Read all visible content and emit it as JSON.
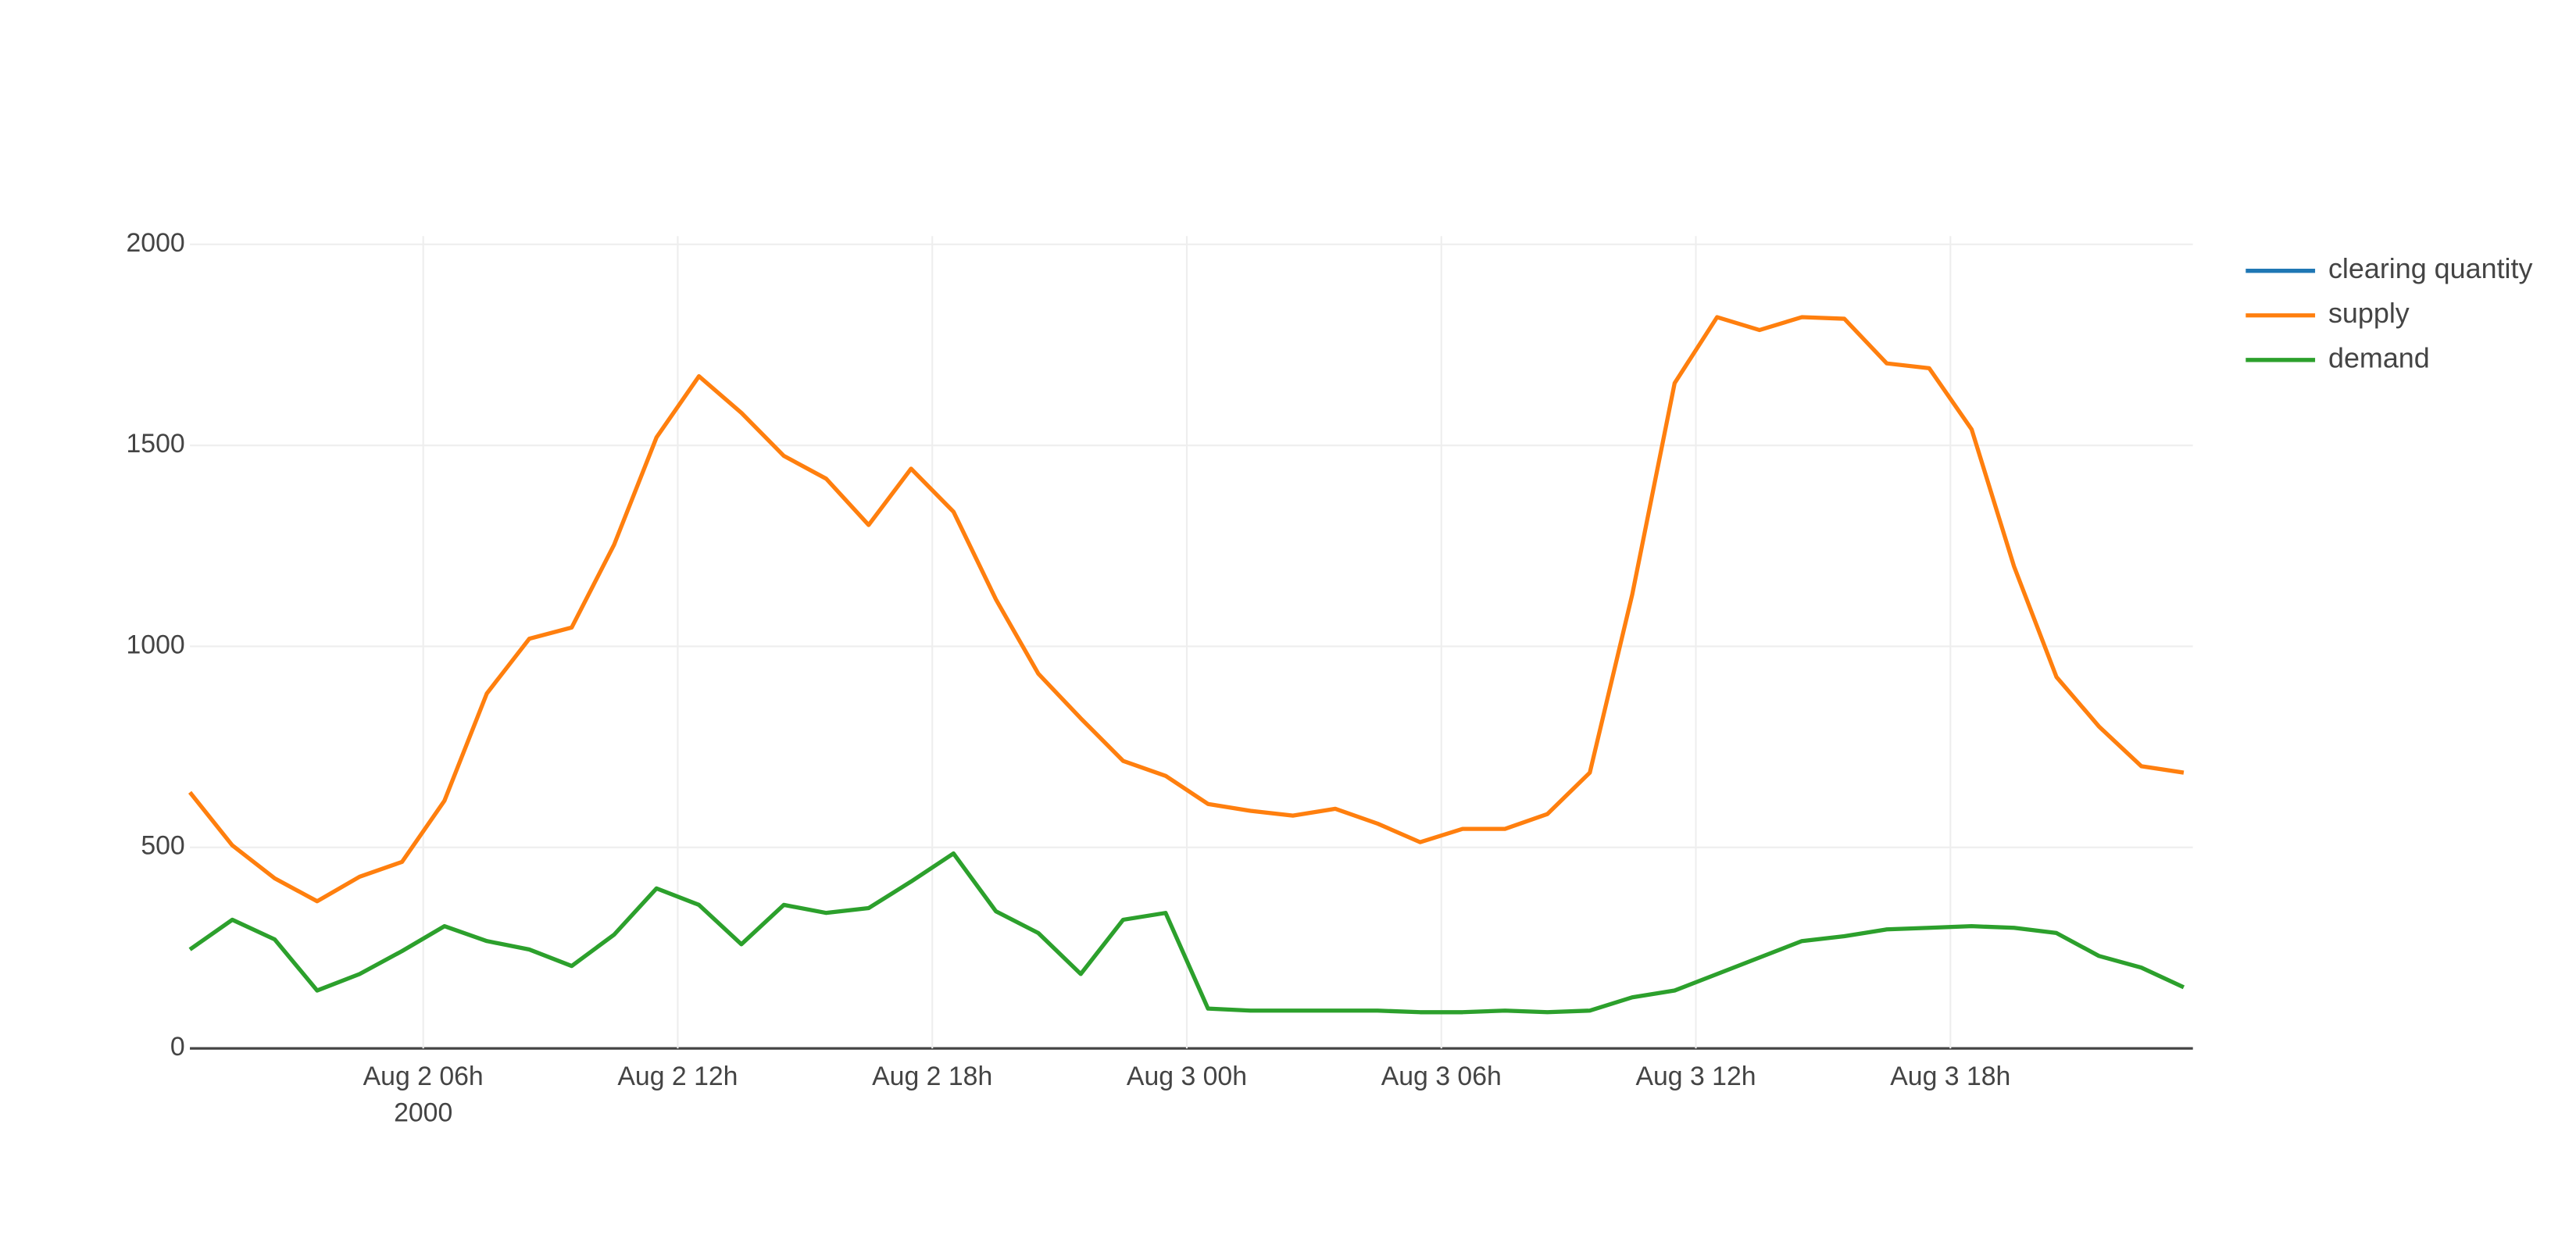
{
  "chart_data": {
    "type": "line",
    "x": [
      "2000-08-02 00:30",
      "2000-08-02 01:30",
      "2000-08-02 02:30",
      "2000-08-02 03:30",
      "2000-08-02 04:30",
      "2000-08-02 05:30",
      "2000-08-02 06:30",
      "2000-08-02 07:30",
      "2000-08-02 08:30",
      "2000-08-02 09:30",
      "2000-08-02 10:30",
      "2000-08-02 11:30",
      "2000-08-02 12:30",
      "2000-08-02 13:30",
      "2000-08-02 14:30",
      "2000-08-02 15:30",
      "2000-08-02 16:30",
      "2000-08-02 17:30",
      "2000-08-02 18:30",
      "2000-08-02 19:30",
      "2000-08-02 20:30",
      "2000-08-02 21:30",
      "2000-08-02 22:30",
      "2000-08-02 23:30",
      "2000-08-03 00:30",
      "2000-08-03 01:30",
      "2000-08-03 02:30",
      "2000-08-03 03:30",
      "2000-08-03 04:30",
      "2000-08-03 05:30",
      "2000-08-03 06:30",
      "2000-08-03 07:30",
      "2000-08-03 08:30",
      "2000-08-03 09:30",
      "2000-08-03 10:30",
      "2000-08-03 11:30",
      "2000-08-03 12:30",
      "2000-08-03 13:30",
      "2000-08-03 14:30",
      "2000-08-03 15:30",
      "2000-08-03 16:30",
      "2000-08-03 17:30",
      "2000-08-03 18:30",
      "2000-08-03 19:30",
      "2000-08-03 20:30",
      "2000-08-03 21:30",
      "2000-08-03 22:30",
      "2000-08-03 23:30"
    ],
    "series": [
      {
        "name": "clearing quantity",
        "color": "#1f77b4",
        "values": [
          null,
          null,
          null,
          null,
          null,
          null,
          null,
          null,
          null,
          null,
          null,
          null,
          null,
          null,
          null,
          null,
          null,
          null,
          null,
          null,
          null,
          null,
          null,
          null,
          null,
          null,
          null,
          null,
          null,
          null,
          null,
          null,
          null,
          null,
          null,
          null,
          null,
          null,
          null,
          null,
          null,
          null,
          null,
          null,
          null,
          null,
          null,
          null
        ]
      },
      {
        "name": "supply",
        "color": "#ff7f0e",
        "values": [
          637,
          505,
          423,
          366,
          427,
          464,
          616,
          883,
          1019,
          1047,
          1253,
          1520,
          1672,
          1581,
          1474,
          1417,
          1302,
          1442,
          1335,
          1117,
          932,
          821,
          715,
          678,
          608,
          591,
          579,
          596,
          559,
          513,
          546,
          546,
          583,
          686,
          1129,
          1655,
          1819,
          1787,
          1819,
          1815,
          1704,
          1692,
          1540,
          1199,
          924,
          801,
          702,
          686
        ]
      },
      {
        "name": "demand",
        "color": "#2ca02c",
        "values": [
          246,
          320,
          271,
          144,
          185,
          242,
          304,
          267,
          246,
          205,
          283,
          398,
          357,
          259,
          357,
          337,
          349,
          415,
          485,
          341,
          287,
          185,
          320,
          337,
          99,
          94,
          94,
          94,
          94,
          90,
          90,
          94,
          90,
          94,
          127,
          144,
          185,
          226,
          267,
          279,
          296,
          300,
          304,
          300,
          287,
          230,
          201,
          152
        ]
      }
    ],
    "xlim": [
      "2000-08-02 00:30",
      "2000-08-03 23:43"
    ],
    "xticks": [
      {
        "value": "2000-08-02 06:00",
        "label": "Aug 2 06h"
      },
      {
        "value": "2000-08-02 12:00",
        "label": "Aug 2 12h"
      },
      {
        "value": "2000-08-02 18:00",
        "label": "Aug 2 18h"
      },
      {
        "value": "2000-08-03 00:00",
        "label": "Aug 3 00h"
      },
      {
        "value": "2000-08-03 06:00",
        "label": "Aug 3 06h"
      },
      {
        "value": "2000-08-03 12:00",
        "label": "Aug 3 12h"
      },
      {
        "value": "2000-08-03 18:00",
        "label": "Aug 3 18h"
      }
    ],
    "x_year_label": "2000",
    "ylim": [
      0,
      2000
    ],
    "yticks": [
      0,
      500,
      1000,
      1500,
      2000
    ],
    "grid": true,
    "legend": "right"
  }
}
